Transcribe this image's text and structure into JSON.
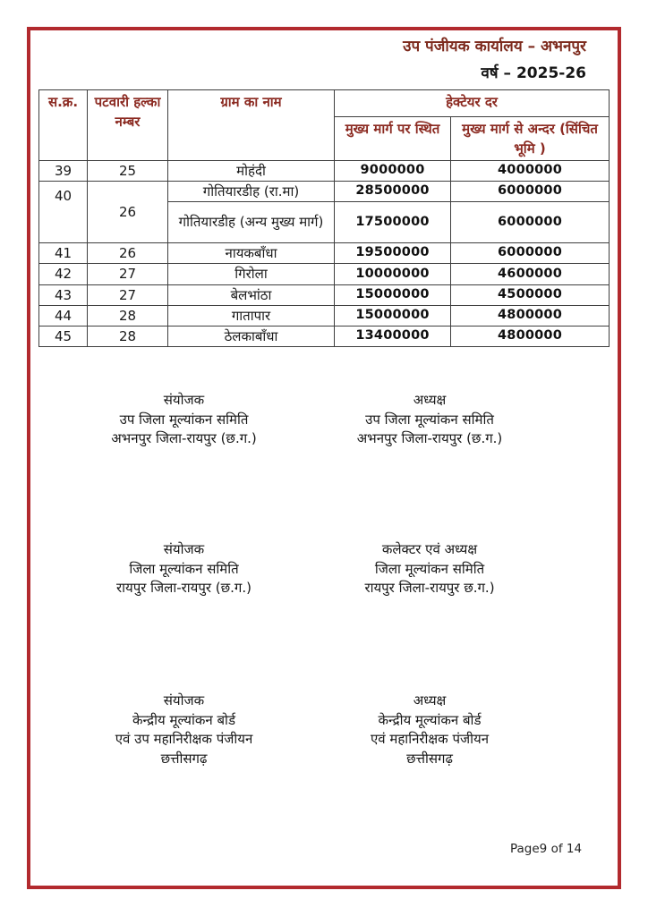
{
  "header": {
    "office": "उप पंजीयक कार्यालय – अभनपुर",
    "year": "वर्ष – 2025-26"
  },
  "table": {
    "headers": {
      "serial": "स.क्र.",
      "halka": "पटवारी हल्का नम्बर",
      "village": "ग्राम का नाम",
      "rate_group": "हेक्टेयर दर",
      "rate_on_road": "मुख्य मार्ग पर स्थित",
      "rate_inside": "मुख्य मार्ग से अन्दर (सिंचित भूमि )"
    },
    "rows": [
      {
        "serial": "39",
        "halka": "25",
        "village": "मोहंदी",
        "rate_on_road": "9000000",
        "rate_inside": "4000000"
      },
      {
        "serial": "40",
        "serial_rowspan": 2,
        "halka": "26",
        "halka_rowspan": 2,
        "village": "गोतियारडीह (रा.मा)",
        "rate_on_road": "28500000",
        "rate_inside": "6000000"
      },
      {
        "village": "गोतियारडीह (अन्य मुख्य मार्ग)",
        "rate_on_road": "17500000",
        "rate_inside": "6000000",
        "tall": true
      },
      {
        "serial": "41",
        "halka": "26",
        "village": "नायकबाँधा",
        "rate_on_road": "19500000",
        "rate_inside": "6000000"
      },
      {
        "serial": "42",
        "halka": "27",
        "village": "गिरोला",
        "rate_on_road": "10000000",
        "rate_inside": "4600000"
      },
      {
        "serial": "43",
        "halka": "27",
        "village": "बेलभांठा",
        "rate_on_road": "15000000",
        "rate_inside": "4500000"
      },
      {
        "serial": "44",
        "halka": "28",
        "village": "गातापार",
        "rate_on_road": "15000000",
        "rate_inside": "4800000"
      },
      {
        "serial": "45",
        "halka": "28",
        "village": "ठेलकाबाँधा",
        "rate_on_road": "13400000",
        "rate_inside": "4800000"
      }
    ]
  },
  "signatures": [
    {
      "left": [
        "संयोजक",
        "उप जिला मूल्यांकन समिति",
        "अभनपुर जिला-रायपुर (छ.ग.)"
      ],
      "right": [
        "अध्यक्ष",
        "उप जिला मूल्यांकन समिति",
        "अभनपुर जिला-रायपुर (छ.ग.)"
      ]
    },
    {
      "left": [
        "संयोजक",
        "जिला मूल्यांकन समिति",
        "रायपुर जिला-रायपुर (छ.ग.)"
      ],
      "right": [
        "कलेक्टर एवं अध्यक्ष",
        "जिला मूल्यांकन समिति",
        "रायपुर जिला-रायपुर छ.ग.)"
      ]
    },
    {
      "left": [
        "संयोजक",
        "केन्द्रीय मूल्यांकन बोर्ड",
        "एवं उप महानिरीक्षक पंजीयन",
        "छत्तीसगढ़"
      ],
      "right": [
        "अध्यक्ष",
        "केन्द्रीय मूल्यांकन बोर्ड",
        "एवं महानिरीक्षक पंजीयन",
        "छत्तीसगढ़"
      ]
    }
  ],
  "footer": {
    "page_label": "Page9 of 14"
  },
  "colors": {
    "border_red": "#b22a2e",
    "header_maroon": "#7d2a1d",
    "table_header_maroon": "#8b2a21"
  }
}
